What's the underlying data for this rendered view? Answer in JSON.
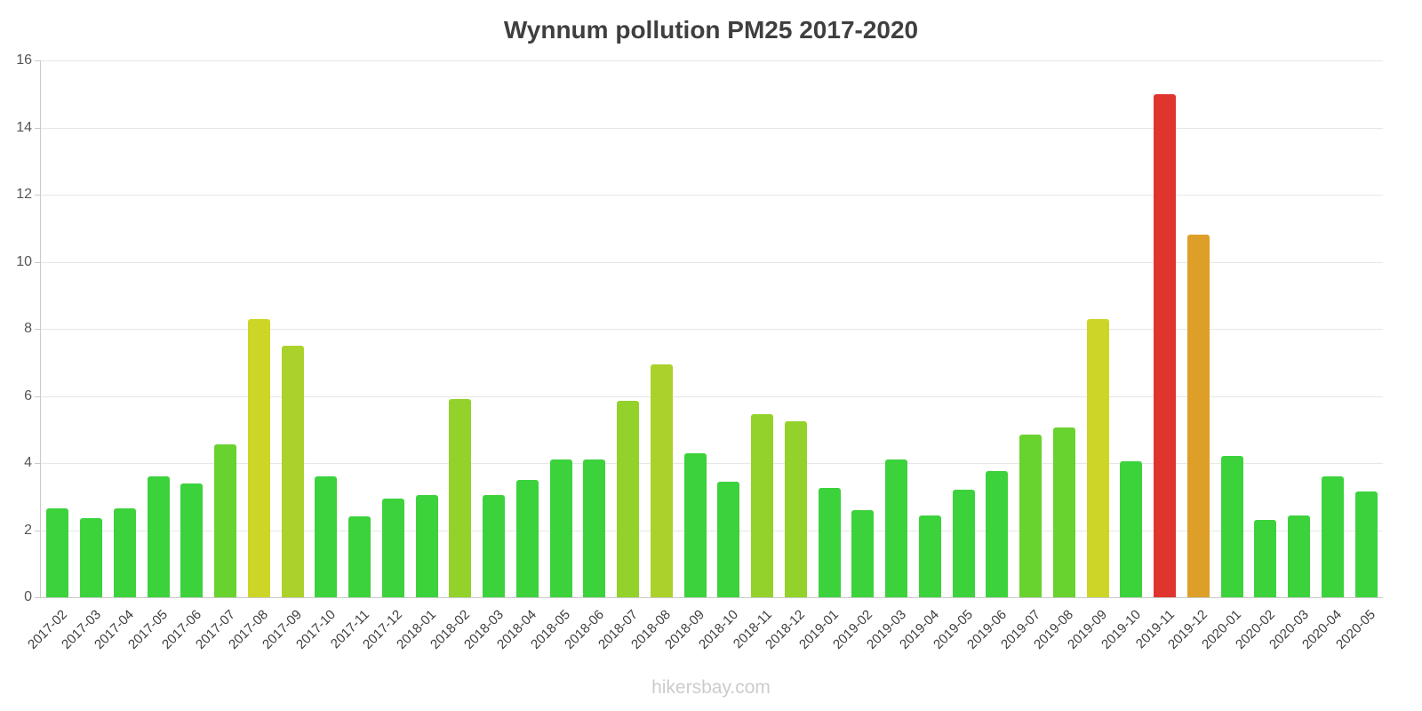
{
  "chart_data": {
    "type": "bar",
    "title": "Wynnum pollution PM25 2017-2020",
    "xlabel": "",
    "ylabel": "",
    "ylim": [
      0,
      16
    ],
    "yticks": [
      0,
      2,
      4,
      6,
      8,
      10,
      12,
      14,
      16
    ],
    "grid": true,
    "legend": "none",
    "categories": [
      "2017-02",
      "2017-03",
      "2017-04",
      "2017-05",
      "2017-06",
      "2017-07",
      "2017-08",
      "2017-09",
      "2017-10",
      "2017-11",
      "2017-12",
      "2018-01",
      "2018-02",
      "2018-03",
      "2018-04",
      "2018-05",
      "2018-06",
      "2018-07",
      "2018-08",
      "2018-09",
      "2018-10",
      "2018-11",
      "2018-12",
      "2019-01",
      "2019-02",
      "2019-03",
      "2019-04",
      "2019-05",
      "2019-06",
      "2019-07",
      "2019-08",
      "2019-09",
      "2019-10",
      "2019-11",
      "2019-12",
      "2020-01",
      "2020-02",
      "2020-03",
      "2020-04",
      "2020-05"
    ],
    "values": [
      2.65,
      2.35,
      2.65,
      3.6,
      3.4,
      4.55,
      8.3,
      7.5,
      3.6,
      2.4,
      2.95,
      3.05,
      5.9,
      3.05,
      3.5,
      4.1,
      4.1,
      5.85,
      6.95,
      4.3,
      3.45,
      5.45,
      5.25,
      3.25,
      2.6,
      4.1,
      2.45,
      3.2,
      3.75,
      4.85,
      5.05,
      8.3,
      4.05,
      15,
      10.8,
      4.2,
      2.3,
      2.45,
      3.6,
      3.15
    ],
    "colors": [
      "#3cd23c",
      "#3cd23c",
      "#3cd23c",
      "#3cd23c",
      "#3cd23c",
      "#68d22e",
      "#cdd626",
      "#abd22a",
      "#3cd23c",
      "#3cd23c",
      "#3cd23c",
      "#3cd23c",
      "#93d22a",
      "#3cd23c",
      "#3cd23c",
      "#3cd23c",
      "#3cd23c",
      "#93d22a",
      "#abd22a",
      "#3cd23c",
      "#3cd23c",
      "#93d22a",
      "#93d22a",
      "#3cd23c",
      "#3cd23c",
      "#3cd23c",
      "#3cd23c",
      "#3cd23c",
      "#3cd23c",
      "#68d22e",
      "#68d22e",
      "#cdd626",
      "#3cd23c",
      "#e0352f",
      "#de9f28",
      "#3cd23c",
      "#3cd23c",
      "#3cd23c",
      "#3cd23c",
      "#3cd23c"
    ]
  },
  "palette": {
    "green": "#3cd23c",
    "light_green": "#68d22e",
    "yellow_green": "#93d22a",
    "olive_green": "#abd22a",
    "yellow": "#cdd626",
    "orange": "#de9f28",
    "red": "#e0352f",
    "gridline": "#e7e7e7",
    "axis": "#c9c9c9",
    "title_text": "#3f3f3f",
    "tick_text": "#555555",
    "watermark_text": "#cccccc"
  },
  "footer": {
    "text": "hikersbay.com"
  }
}
